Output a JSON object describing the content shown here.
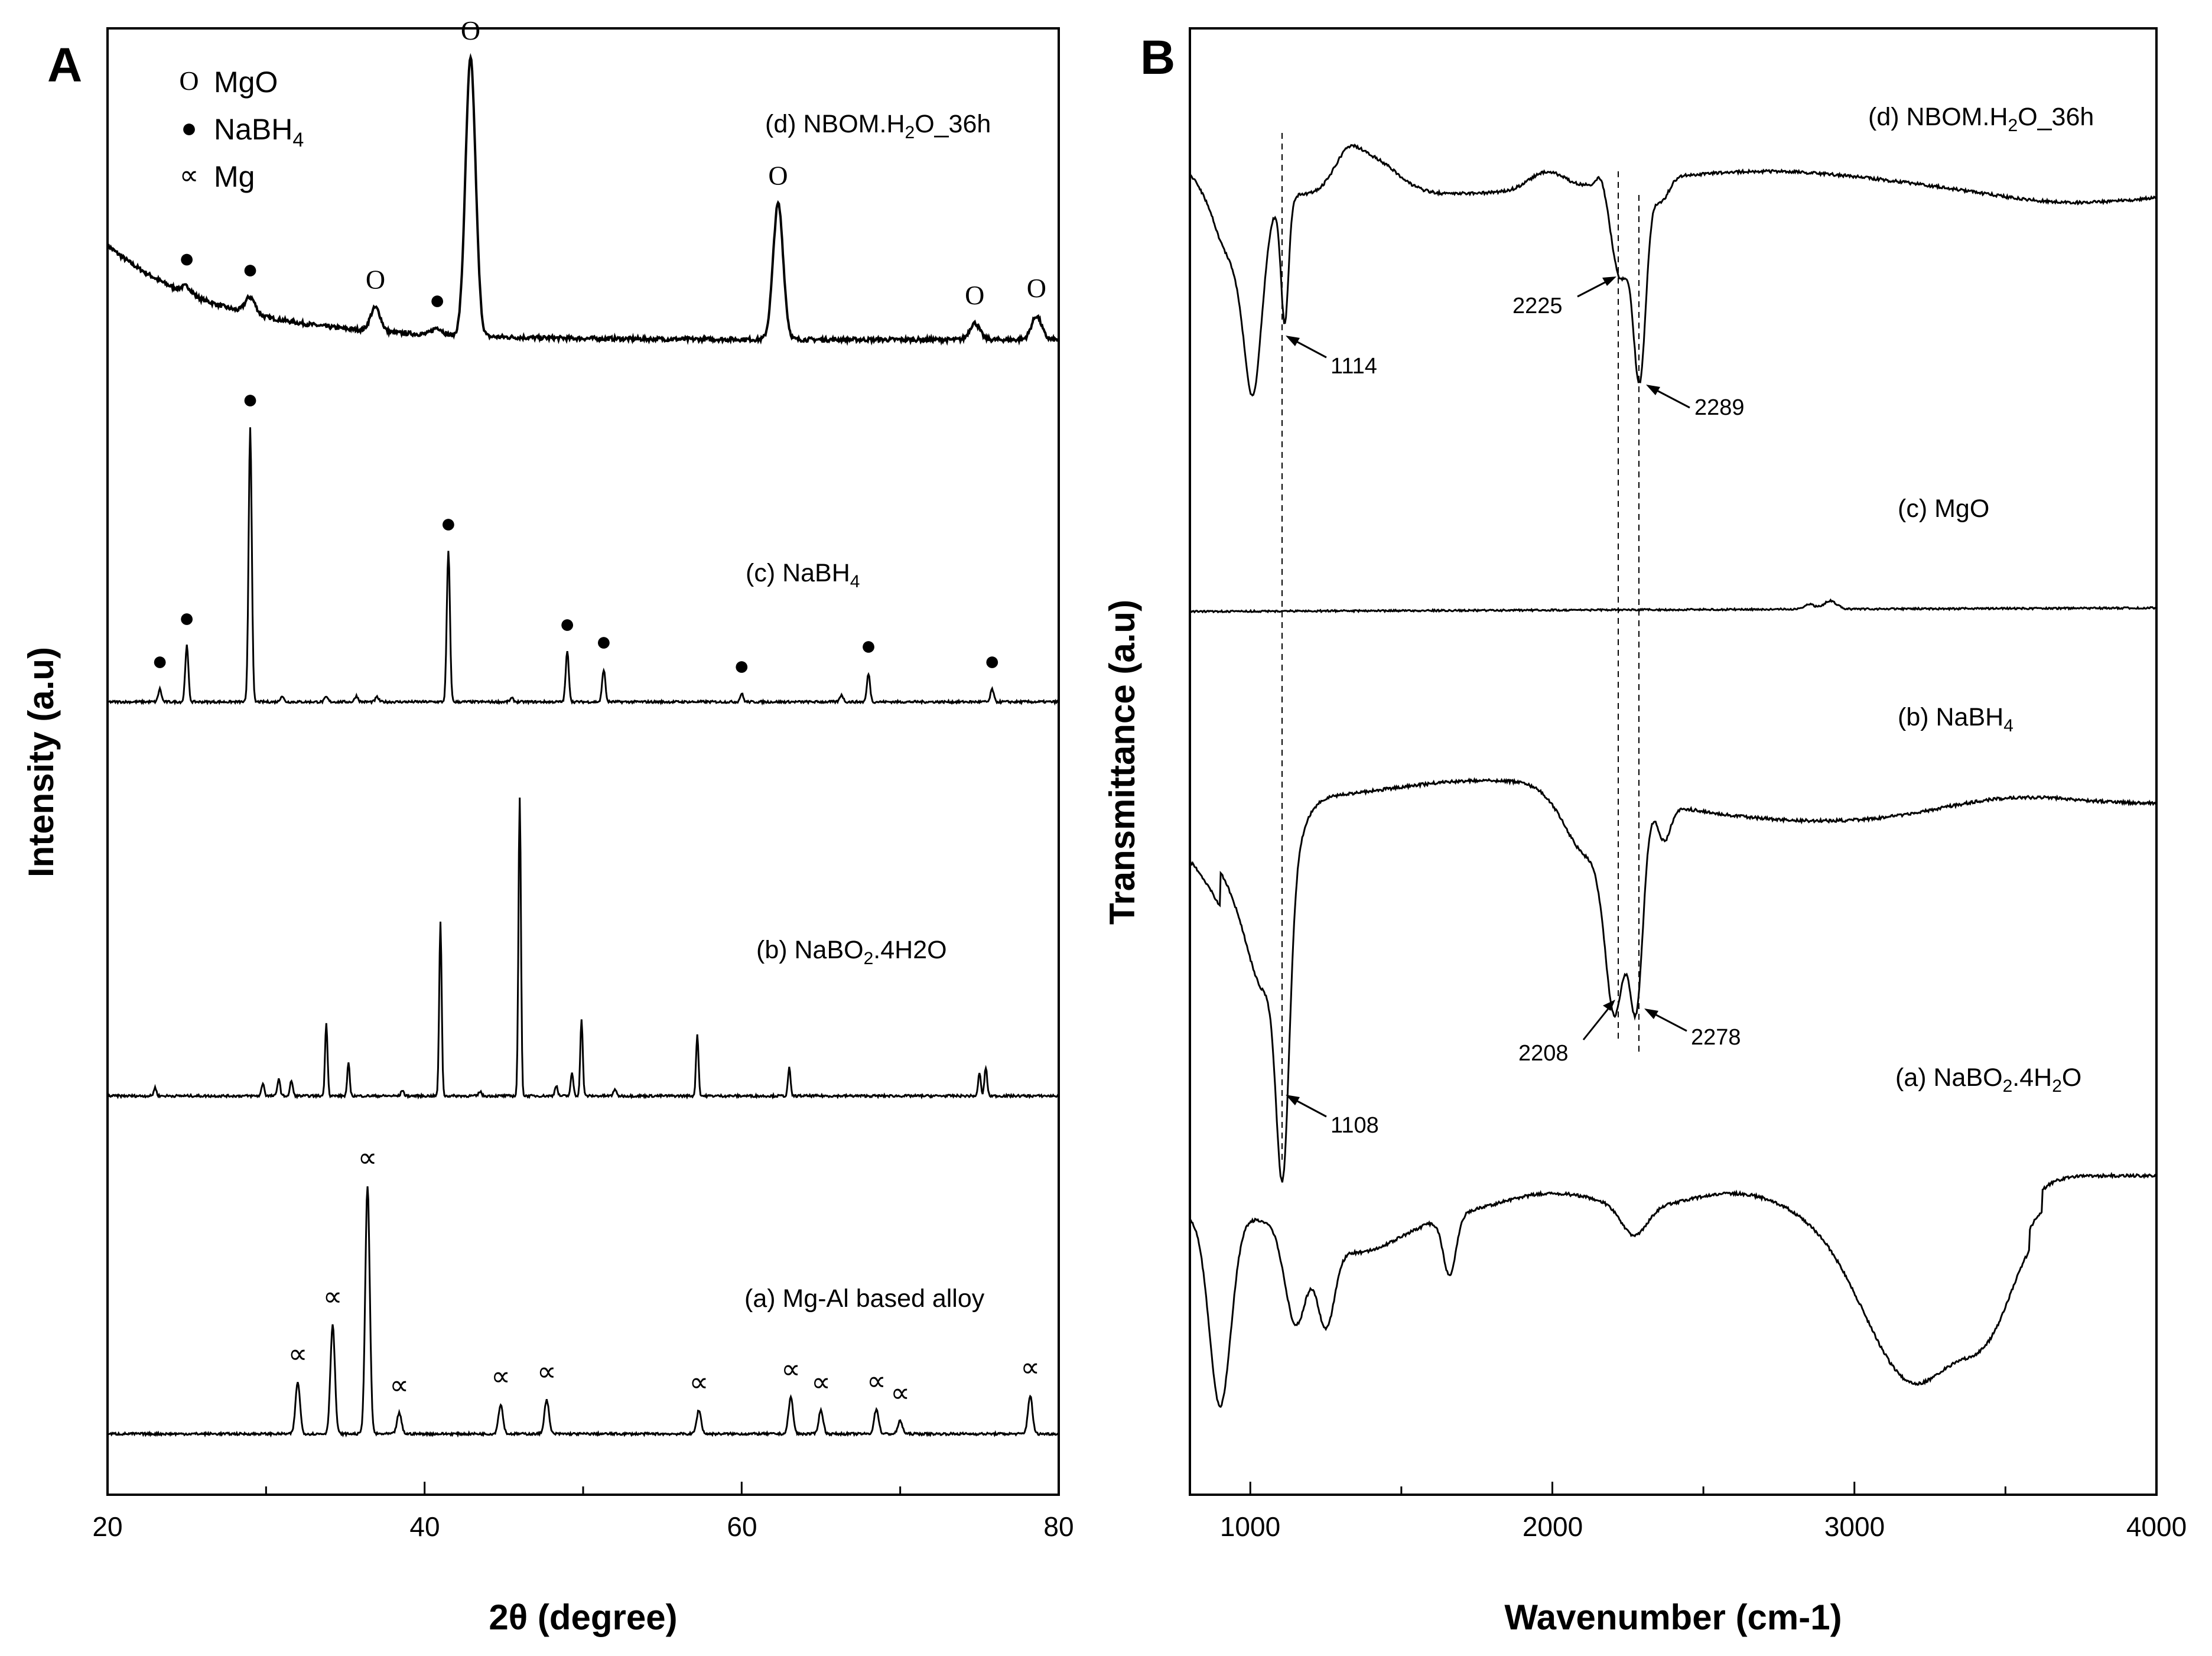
{
  "chart_data": [
    {
      "panel": "A",
      "type": "line",
      "xlabel": "2θ (degree)",
      "ylabel": "Intensity (a.u)",
      "xlim": [
        20,
        80
      ],
      "xticks": [
        "20",
        "40",
        "60",
        "80"
      ],
      "legend": {
        "placement": "top-left",
        "entries": [
          {
            "symbol": "O",
            "label_main": "MgO",
            "label_sub": ""
          },
          {
            "symbol": "●",
            "label_main": "NaBH",
            "label_sub": "4"
          },
          {
            "symbol": "∝",
            "label_main": "Mg",
            "label_sub": ""
          }
        ]
      },
      "series": [
        {
          "id": "d",
          "label_main": "(d) NBOM.H",
          "label_sub": "2",
          "label_tail": "O_36h",
          "peaks": [
            [
              25,
              "NaBH4"
            ],
            [
              29,
              "NaBH4"
            ],
            [
              36.9,
              "MgO"
            ],
            [
              40.8,
              "NaBH4"
            ],
            [
              42.9,
              "MgO"
            ],
            [
              62.3,
              "MgO"
            ],
            [
              74.7,
              "MgO"
            ],
            [
              78.6,
              "MgO"
            ]
          ]
        },
        {
          "id": "c",
          "label_main": "(c) NaBH",
          "label_sub": "4",
          "label_tail": "",
          "peaks": [
            [
              23.3,
              "NaBH4"
            ],
            [
              25,
              "NaBH4"
            ],
            [
              29,
              "NaBH4"
            ],
            [
              41.5,
              "NaBH4"
            ],
            [
              49,
              "NaBH4"
            ],
            [
              51.3,
              "NaBH4"
            ],
            [
              60,
              "NaBH4"
            ],
            [
              68,
              "NaBH4"
            ],
            [
              75.8,
              "NaBH4"
            ]
          ]
        },
        {
          "id": "b",
          "label_main": "(b) NaBO",
          "label_sub": "2",
          "label_tail": ".4H2O",
          "peaks": [
            [
              33.8,
              ""
            ],
            [
              35.2,
              ""
            ],
            [
              41,
              ""
            ],
            [
              46,
              ""
            ],
            [
              49.9,
              ""
            ],
            [
              57.2,
              ""
            ],
            [
              63,
              ""
            ],
            [
              75,
              ""
            ]
          ]
        },
        {
          "id": "a",
          "label_main": "(a) Mg-Al based alloy",
          "label_sub": "",
          "label_tail": "",
          "peaks": [
            [
              32,
              "Mg"
            ],
            [
              34.2,
              "Mg"
            ],
            [
              36.4,
              "Mg"
            ],
            [
              38.4,
              "Mg"
            ],
            [
              44.8,
              "Mg"
            ],
            [
              47.7,
              "Mg"
            ],
            [
              57.3,
              "Mg"
            ],
            [
              63.1,
              "Mg"
            ],
            [
              65,
              "Mg"
            ],
            [
              68.5,
              "Mg"
            ],
            [
              70,
              "Mg"
            ],
            [
              78.2,
              "Mg"
            ]
          ]
        }
      ]
    },
    {
      "panel": "B",
      "type": "line",
      "xlabel": "Wavenumber (cm-1)",
      "ylabel": "Transmittance (a.u)",
      "xlim": [
        800,
        4000
      ],
      "xticks": [
        "1000",
        "2000",
        "3000",
        "4000"
      ],
      "series": [
        {
          "id": "d",
          "label_main": "(d) NBOM.H",
          "label_sub": "2",
          "label_tail": "O_36h"
        },
        {
          "id": "c",
          "label_main": "(c) MgO",
          "label_sub": "",
          "label_tail": ""
        },
        {
          "id": "b",
          "label_main": "(b) NaBH",
          "label_sub": "4",
          "label_tail": ""
        },
        {
          "id": "a",
          "label_main": "(a) NaBO",
          "label_sub": "2",
          "label_tail": ".4H",
          "label_sub2": "2",
          "label_tail2": "O"
        }
      ],
      "annotations": [
        "1114",
        "2225",
        "2289",
        "1108",
        "2208",
        "2278"
      ],
      "reference_lines": [
        1108,
        2225,
        2289
      ]
    }
  ],
  "panel_labels": {
    "a": "A",
    "b": "B"
  },
  "symbols": {
    "mgo": "O",
    "nabh4": "●",
    "mg": "∝"
  }
}
